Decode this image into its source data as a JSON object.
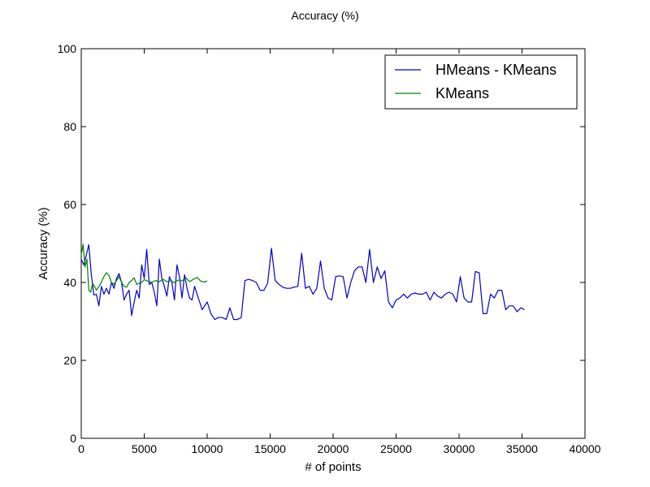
{
  "chart_data": {
    "type": "line",
    "title": "Accuracy (%)",
    "xlabel": "# of points",
    "ylabel": "Accuracy (%)",
    "xlim": [
      0,
      40000
    ],
    "ylim": [
      0,
      100
    ],
    "xticks": [
      0,
      5000,
      10000,
      15000,
      20000,
      25000,
      30000,
      35000,
      40000
    ],
    "yticks": [
      0,
      20,
      40,
      60,
      80,
      100
    ],
    "grid": false,
    "legend": "top-right",
    "series": [
      {
        "name": "HMeans - KMeans",
        "color": "#0000cc",
        "x": [
          0,
          200,
          400,
          600,
          800,
          1000,
          1200,
          1400,
          1600,
          1800,
          2000,
          2200,
          2400,
          2600,
          2800,
          3000,
          3200,
          3400,
          3600,
          3800,
          4000,
          4200,
          4400,
          4600,
          4800,
          5000,
          5200,
          5400,
          5600,
          5800,
          6000,
          6200,
          6400,
          6600,
          6800,
          7000,
          7200,
          7400,
          7600,
          7800,
          8000,
          8200,
          8400,
          8600,
          8800,
          9000,
          9200,
          9400,
          9600,
          9800,
          10000,
          10300,
          10600,
          10900,
          11200,
          11500,
          11800,
          12100,
          12400,
          12700,
          13000,
          13300,
          13600,
          13900,
          14200,
          14500,
          14800,
          15100,
          15400,
          15700,
          16000,
          16300,
          16600,
          16900,
          17200,
          17500,
          17800,
          18100,
          18400,
          18700,
          19000,
          19300,
          19600,
          19900,
          20200,
          20500,
          20800,
          21100,
          21400,
          21700,
          22000,
          22300,
          22600,
          22900,
          23200,
          23500,
          23800,
          24100,
          24400,
          24700,
          25000,
          25300,
          25600,
          25900,
          26200,
          26500,
          26800,
          27100,
          27400,
          27700,
          28000,
          28300,
          28600,
          28900,
          29200,
          29500,
          29800,
          30100,
          30400,
          30700,
          31000,
          31300,
          31600,
          31900,
          32200,
          32500,
          32800,
          33100,
          33400,
          33700,
          34000,
          34300,
          34600,
          34900,
          35200
        ],
        "y": [
          46,
          44.5,
          47,
          49.7,
          42,
          36.8,
          37,
          34,
          39,
          37,
          38.5,
          37,
          40,
          38.5,
          41,
          42.3,
          40,
          35.5,
          37,
          38,
          31.5,
          35,
          38,
          36,
          44.5,
          41,
          48.5,
          39.5,
          40,
          37.5,
          34,
          46,
          41,
          39,
          36.5,
          41.5,
          40,
          35.5,
          44.5,
          41.5,
          36,
          42,
          38.5,
          36,
          35.5,
          39,
          37,
          35,
          33,
          34,
          35,
          32,
          30.5,
          31,
          31,
          30.5,
          33.5,
          30.5,
          30.5,
          31,
          40.5,
          40.8,
          40.5,
          40,
          38,
          38,
          39.8,
          48.8,
          40.5,
          39.5,
          38.8,
          38.5,
          38.5,
          38.8,
          39,
          47.5,
          38.5,
          39,
          37,
          38.5,
          45.5,
          38.5,
          36,
          35.5,
          41.5,
          41.7,
          41.5,
          36,
          40,
          43,
          44,
          44,
          40,
          48.5,
          40,
          44,
          41,
          43,
          35,
          33.5,
          35.5,
          36,
          37,
          36,
          37,
          37.3,
          37,
          37,
          37.5,
          35.5,
          37.5,
          36.5,
          36,
          37,
          37.5,
          37,
          35,
          41.5,
          36,
          35,
          35,
          42.8,
          42.5,
          32,
          32,
          37,
          36,
          38,
          38,
          33,
          34,
          34,
          32.5,
          33.5,
          33
        ]
      },
      {
        "name": "KMeans",
        "color": "#007f00",
        "x": [
          0,
          150,
          300,
          450,
          600,
          750,
          900,
          1050,
          1200,
          1350,
          1500,
          1650,
          1800,
          2000,
          2200,
          2400,
          2600,
          2800,
          3000,
          3200,
          3400,
          3600,
          3800,
          4000,
          4200,
          4400,
          4600,
          4800,
          5000,
          5300,
          5600,
          5900,
          6200,
          6500,
          6800,
          7100,
          7400,
          7700,
          8000,
          8300,
          8600,
          8900,
          9200,
          9500,
          9800,
          10000
        ],
        "y": [
          47,
          49.8,
          44,
          46,
          38,
          37.5,
          39.8,
          39,
          38,
          38.7,
          39.5,
          40.5,
          41.5,
          42.5,
          41.8,
          40,
          39.5,
          40.5,
          41.5,
          40,
          39,
          38.8,
          40,
          40.5,
          41.2,
          39.5,
          39.8,
          40,
          40.7,
          40.3,
          40,
          40.5,
          40.2,
          40.8,
          40.2,
          40.5,
          40,
          40.6,
          40.4,
          41.2,
          40.2,
          40.8,
          41.3,
          40.3,
          40.1,
          40.4
        ]
      }
    ]
  }
}
